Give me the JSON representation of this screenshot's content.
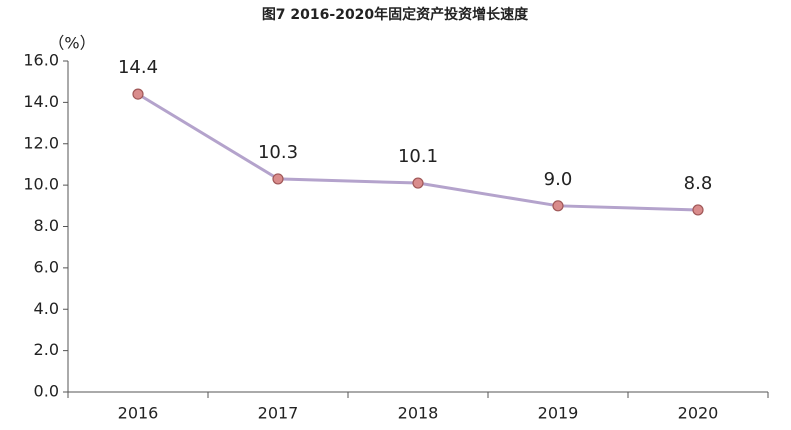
{
  "chart_data": {
    "type": "line",
    "title": "图7 2016-2020年固定资产投资增长速度",
    "y_label": "（%）",
    "categories": [
      "2016",
      "2017",
      "2018",
      "2019",
      "2020"
    ],
    "values": [
      14.4,
      10.3,
      10.1,
      9.0,
      8.8
    ],
    "value_labels": [
      "14.4",
      "10.3",
      "10.1",
      "9.0",
      "8.8"
    ],
    "color": "#b4a3cc",
    "marker_color": "#d98c8c",
    "ylim": [
      0,
      16
    ],
    "yticks": [
      {
        "value": 0,
        "label": "0.0"
      },
      {
        "value": 2,
        "label": "2.0"
      },
      {
        "value": 4,
        "label": "4.0"
      },
      {
        "value": 6,
        "label": "6.0"
      },
      {
        "value": 8,
        "label": "8.0"
      },
      {
        "value": 10,
        "label": "10.0"
      },
      {
        "value": 12,
        "label": "12.0"
      },
      {
        "value": 14,
        "label": "14.0"
      },
      {
        "value": 16,
        "label": "16.0"
      }
    ],
    "grid": false
  }
}
